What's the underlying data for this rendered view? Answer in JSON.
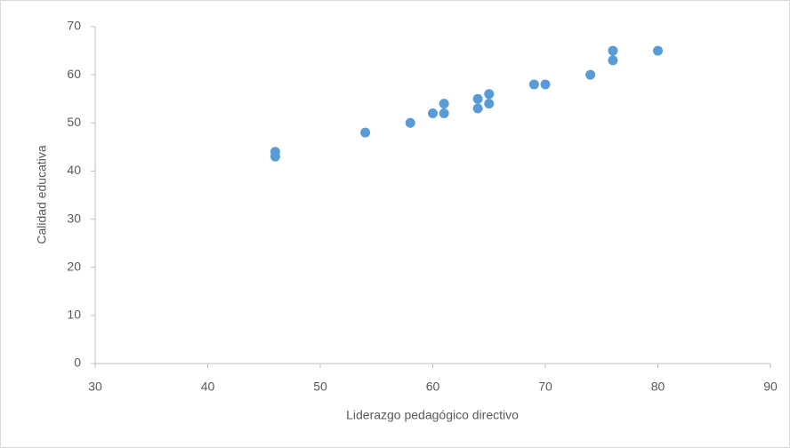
{
  "chart_data": {
    "type": "scatter",
    "x_label": "Liderazgo pedagógico directivo",
    "y_label": "Calidad educativa",
    "x": [
      46,
      46,
      54,
      58,
      60,
      61,
      61,
      64,
      64,
      65,
      65,
      69,
      70,
      74,
      76,
      76,
      80
    ],
    "values": [
      44,
      43,
      48,
      50,
      52,
      54,
      52,
      55,
      53,
      56,
      54,
      58,
      58,
      60,
      65,
      63,
      65
    ],
    "color": "#5b9bd5",
    "xlim": [
      30,
      90
    ],
    "xticks": [
      30,
      40,
      50,
      60,
      70,
      80,
      90
    ],
    "ylim": [
      0,
      70
    ],
    "yticks": [
      0,
      10,
      20,
      30,
      40,
      50,
      60,
      70
    ],
    "grid": false
  }
}
